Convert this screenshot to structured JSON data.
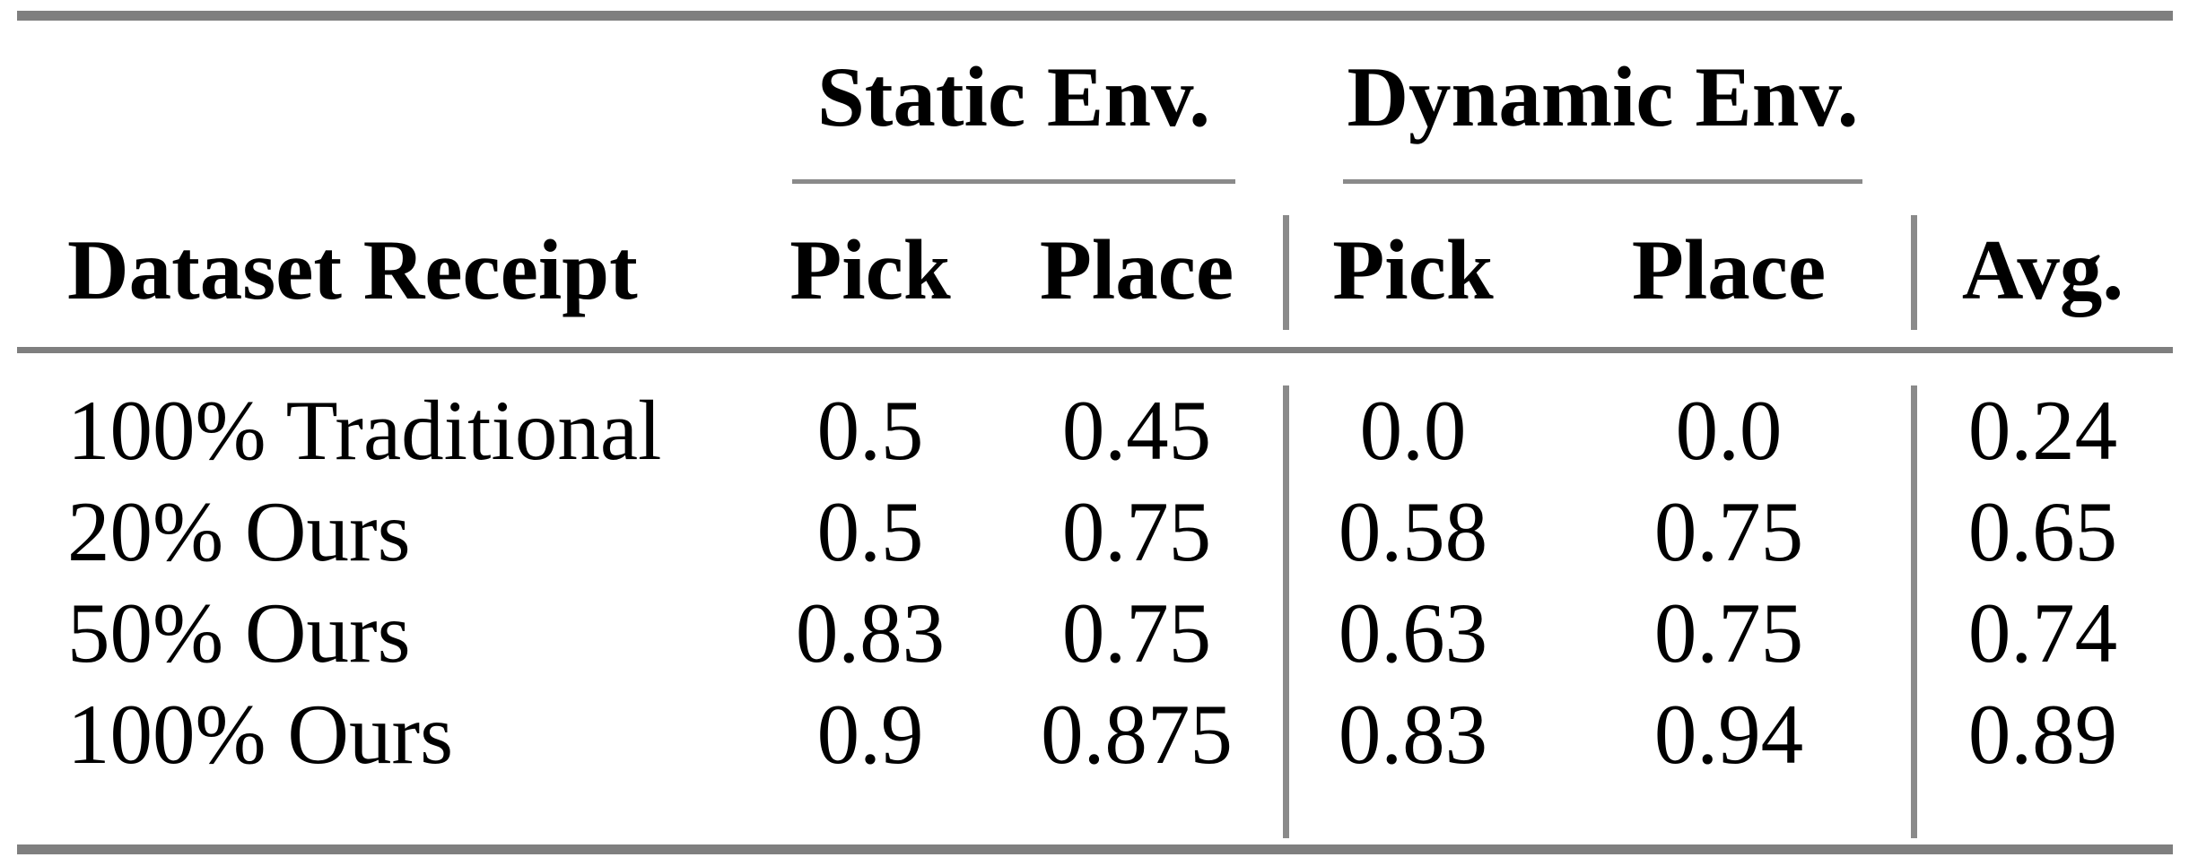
{
  "colors": {
    "background": "#ffffff",
    "text": "#000000",
    "rule_heavy": "#7f7f7f",
    "rule_light": "#8a8a8a"
  },
  "table": {
    "span_headers": {
      "static": "Static Env.",
      "dynamic": "Dynamic Env."
    },
    "column_headers": {
      "row_label": "Dataset Receipt",
      "static_pick": "Pick",
      "static_place": "Place",
      "dynamic_pick": "Pick",
      "dynamic_place": "Place",
      "avg": "Avg."
    },
    "rows": [
      {
        "label": "100% Traditional",
        "static_pick": "0.5",
        "static_place": "0.45",
        "dynamic_pick": "0.0",
        "dynamic_place": "0.0",
        "avg": "0.24"
      },
      {
        "label": "20% Ours",
        "static_pick": "0.5",
        "static_place": "0.75",
        "dynamic_pick": "0.58",
        "dynamic_place": "0.75",
        "avg": "0.65"
      },
      {
        "label": "50% Ours",
        "static_pick": "0.83",
        "static_place": "0.75",
        "dynamic_pick": "0.63",
        "dynamic_place": "0.75",
        "avg": "0.74"
      },
      {
        "label": "100% Ours",
        "static_pick": "0.9",
        "static_place": "0.875",
        "dynamic_pick": "0.83",
        "dynamic_place": "0.94",
        "avg": "0.89"
      }
    ]
  },
  "chart_data": {
    "type": "table",
    "title": "",
    "column_groups": [
      "Static Env.",
      "Dynamic Env."
    ],
    "columns": [
      "Dataset Receipt",
      "Static Env. Pick",
      "Static Env. Place",
      "Dynamic Env. Pick",
      "Dynamic Env. Place",
      "Avg."
    ],
    "rows": [
      [
        "100% Traditional",
        0.5,
        0.45,
        0.0,
        0.0,
        0.24
      ],
      [
        "20% Ours",
        0.5,
        0.75,
        0.58,
        0.75,
        0.65
      ],
      [
        "50% Ours",
        0.83,
        0.75,
        0.63,
        0.75,
        0.74
      ],
      [
        "100% Ours",
        0.9,
        0.875,
        0.83,
        0.94,
        0.89
      ]
    ]
  }
}
